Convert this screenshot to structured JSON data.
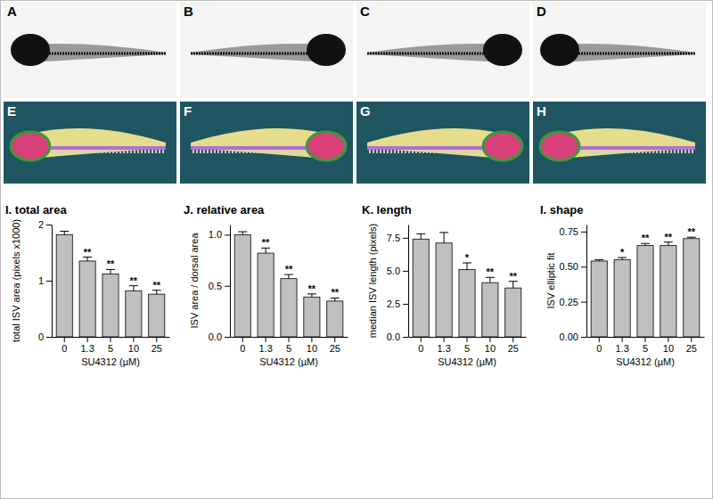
{
  "image_panels": [
    "A",
    "B",
    "C",
    "D",
    "E",
    "F",
    "G",
    "H"
  ],
  "chart_data": [
    {
      "type": "bar",
      "title": "I. total area",
      "y_label": "total ISV area (pixels x1000)",
      "x_label": "SU4312 (µM)",
      "categories": [
        "0",
        "1.3",
        "5",
        "10",
        "25"
      ],
      "values": [
        1.82,
        1.35,
        1.12,
        0.82,
        0.76
      ],
      "errors": [
        0.06,
        0.07,
        0.08,
        0.09,
        0.07
      ],
      "significance": [
        null,
        "**",
        "**",
        "**",
        "**"
      ],
      "color": "#c0c0c0",
      "ylim": [
        0,
        2
      ],
      "yticks": [
        0,
        1,
        2
      ],
      "grid": false
    },
    {
      "type": "bar",
      "title": "J. relative area",
      "y_label": "ISV area / dorsal area",
      "x_label": "SU4312 (µM)",
      "categories": [
        "0",
        "1.3",
        "5",
        "10",
        "25"
      ],
      "values": [
        1.0,
        0.82,
        0.57,
        0.39,
        0.35
      ],
      "errors": [
        0.03,
        0.05,
        0.04,
        0.03,
        0.03
      ],
      "significance": [
        null,
        "**",
        "**",
        "**",
        "**"
      ],
      "color": "#c0c0c0",
      "ylim": [
        0,
        1.1
      ],
      "yticks": [
        {
          "value": 0,
          "label": "0.0"
        },
        {
          "value": 0.5,
          "label": "0.5"
        },
        {
          "value": 1,
          "label": "1.0"
        }
      ],
      "grid": false
    },
    {
      "type": "bar",
      "title": "K. length",
      "y_label": "median ISV length (pixels)",
      "x_label": "SU4312 (µM)",
      "categories": [
        "0",
        "1.3",
        "5",
        "10",
        "25"
      ],
      "values": [
        7.4,
        7.1,
        5.1,
        4.1,
        3.7
      ],
      "errors": [
        0.4,
        0.8,
        0.5,
        0.4,
        0.5
      ],
      "significance": [
        null,
        null,
        "*",
        "**",
        "**"
      ],
      "color": "#c0c0c0",
      "ylim": [
        0,
        8.5
      ],
      "yticks": [
        {
          "value": 0,
          "label": "0.0"
        },
        {
          "value": 2.5,
          "label": "2.5"
        },
        {
          "value": 5,
          "label": "5.0"
        },
        {
          "value": 7.5,
          "label": "7.5"
        }
      ],
      "grid": false
    },
    {
      "type": "bar",
      "title": "I. shape",
      "y_label": "ISV elliptic fit",
      "x_label": "SU4312 (µM)",
      "categories": [
        "0",
        "1.3",
        "5",
        "10",
        "25"
      ],
      "values": [
        0.54,
        0.55,
        0.65,
        0.65,
        0.7
      ],
      "errors": [
        0.01,
        0.015,
        0.015,
        0.025,
        0.01
      ],
      "significance": [
        null,
        "*",
        "**",
        "**",
        "**"
      ],
      "color": "#c0c0c0",
      "ylim": [
        0,
        0.8
      ],
      "yticks": [
        {
          "value": 0,
          "label": "0.00"
        },
        {
          "value": 0.25,
          "label": "0.25"
        },
        {
          "value": 0.5,
          "label": "0.50"
        },
        {
          "value": 0.75,
          "label": "0.75"
        }
      ],
      "grid": false
    }
  ]
}
